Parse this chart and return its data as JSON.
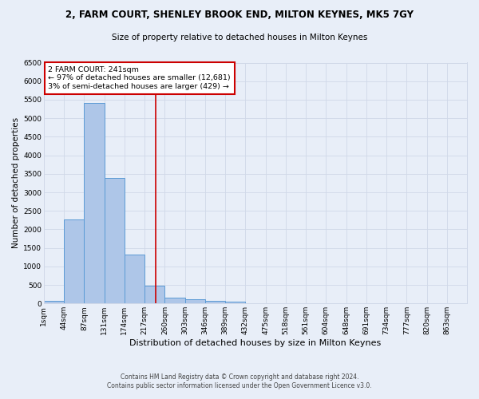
{
  "title": "2, FARM COURT, SHENLEY BROOK END, MILTON KEYNES, MK5 7GY",
  "subtitle": "Size of property relative to detached houses in Milton Keynes",
  "xlabel": "Distribution of detached houses by size in Milton Keynes",
  "ylabel": "Number of detached properties",
  "footer_line1": "Contains HM Land Registry data © Crown copyright and database right 2024.",
  "footer_line2": "Contains public sector information licensed under the Open Government Licence v3.0.",
  "categories": [
    "1sqm",
    "44sqm",
    "87sqm",
    "131sqm",
    "174sqm",
    "217sqm",
    "260sqm",
    "303sqm",
    "346sqm",
    "389sqm",
    "432sqm",
    "475sqm",
    "518sqm",
    "561sqm",
    "604sqm",
    "648sqm",
    "691sqm",
    "734sqm",
    "777sqm",
    "820sqm",
    "863sqm"
  ],
  "bar_values": [
    75,
    2270,
    5420,
    3390,
    1310,
    480,
    155,
    115,
    75,
    45,
    0,
    0,
    0,
    0,
    0,
    0,
    0,
    0,
    0,
    0,
    0
  ],
  "bar_color": "#aec6e8",
  "bar_edge_color": "#5b9bd5",
  "ylim": [
    0,
    6500
  ],
  "yticks": [
    0,
    500,
    1000,
    1500,
    2000,
    2500,
    3000,
    3500,
    4000,
    4500,
    5000,
    5500,
    6000,
    6500
  ],
  "annotation_box_color": "#ffffff",
  "annotation_border_color": "#cc0000",
  "grid_color": "#d0d8e8",
  "bg_color": "#e8eef8",
  "title_fontsize": 8.5,
  "subtitle_fontsize": 7.5,
  "xlabel_fontsize": 8,
  "ylabel_fontsize": 7.5,
  "tick_fontsize": 6.5,
  "footer_fontsize": 5.5,
  "annot_fontsize": 6.8
}
